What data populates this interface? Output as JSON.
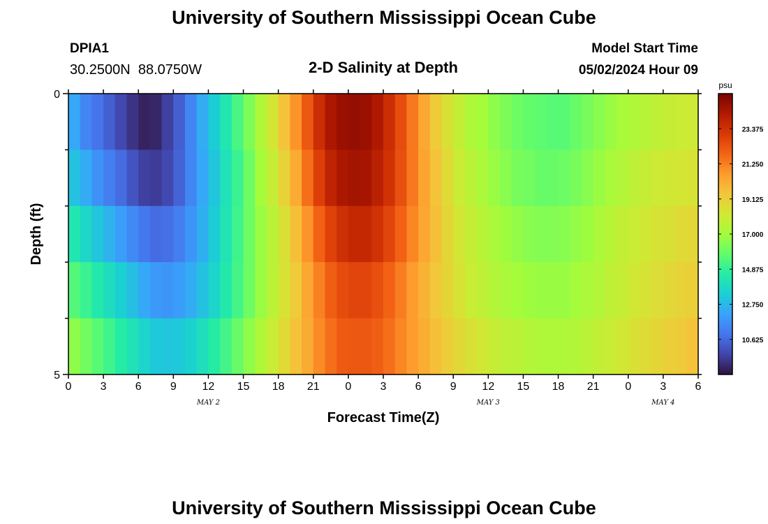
{
  "header": {
    "title": "University of Southern Mississippi Ocean Cube",
    "station": "DPIA1",
    "coords": "30.2500N  88.0750W",
    "subtitle": "2-D Salinity at Depth",
    "model_label": "Model Start Time",
    "model_time": "05/02/2024 Hour 09"
  },
  "footer": {
    "title": "University of Southern Mississippi Ocean Cube"
  },
  "chart_data": {
    "type": "heatmap",
    "title": "2-D Salinity at Depth",
    "xlabel": "Forecast Time(Z)",
    "ylabel": "Depth (ft)",
    "x_tick_labels": [
      "0",
      "3",
      "6",
      "9",
      "12",
      "15",
      "18",
      "21",
      "0",
      "3",
      "6",
      "9",
      "12",
      "15",
      "18",
      "21",
      "0",
      "3",
      "6"
    ],
    "date_labels": [
      {
        "label": "MAY 2",
        "x": 12
      },
      {
        "label": "MAY 3",
        "x": 36
      },
      {
        "label": "MAY 4",
        "x": 51
      }
    ],
    "y_tick_labels": [
      "0",
      "5"
    ],
    "xlim": [
      0,
      54
    ],
    "ylim": [
      0,
      5
    ],
    "colorbar": {
      "unit": "psu",
      "ticks": [
        "23.375",
        "21.250",
        "19.125",
        "17.000",
        "14.875",
        "12.750",
        "10.625"
      ],
      "tick_values": [
        23.375,
        21.25,
        19.125,
        17.0,
        14.875,
        12.75,
        10.625
      ],
      "vmin": 8.5,
      "vmax": 25.5
    },
    "colormap": [
      "#30123b",
      "#4145ab",
      "#4675ed",
      "#39a2fc",
      "#1bcfd4",
      "#24eca6",
      "#61fc6c",
      "#a4fc3b",
      "#d1e834",
      "#f3c63a",
      "#fe9b2d",
      "#f36315",
      "#d93806",
      "#b11901",
      "#7a0402"
    ],
    "x_hours": [
      0,
      1,
      2,
      3,
      4,
      5,
      6,
      7,
      8,
      9,
      10,
      11,
      12,
      13,
      14,
      15,
      16,
      17,
      18,
      19,
      20,
      21,
      22,
      23,
      24,
      25,
      26,
      27,
      28,
      29,
      30,
      31,
      32,
      33,
      34,
      35,
      36,
      37,
      38,
      39,
      40,
      41,
      42,
      43,
      44,
      45,
      46,
      47,
      48,
      49,
      50,
      51,
      52,
      53,
      54
    ],
    "depth_levels_ft": [
      0,
      1,
      2,
      3,
      4,
      5
    ],
    "values_by_depth_interval": [
      [
        12.3,
        11.4,
        10.9,
        10.4,
        9.8,
        9.3,
        8.9,
        9.0,
        9.6,
        10.4,
        11.4,
        12.4,
        13.3,
        14.3,
        15.3,
        16.3,
        17.3,
        18.3,
        19.5,
        20.8,
        22.2,
        23.5,
        24.4,
        24.8,
        24.9,
        24.8,
        24.3,
        23.5,
        22.5,
        21.4,
        20.3,
        19.3,
        18.5,
        17.8,
        17.3,
        17.0,
        16.6,
        16.3,
        16.0,
        15.8,
        15.7,
        15.6,
        15.6,
        15.9,
        16.2,
        16.5,
        16.8,
        17.1,
        17.3,
        17.5,
        17.7,
        17.9,
        18.0,
        18.1,
        18.3
      ],
      [
        13.0,
        12.4,
        11.7,
        11.2,
        10.7,
        10.1,
        9.6,
        9.5,
        9.8,
        10.5,
        11.4,
        12.3,
        13.1,
        14.1,
        15.0,
        16.0,
        17.0,
        17.9,
        19.0,
        20.2,
        21.6,
        22.9,
        23.9,
        24.4,
        24.6,
        24.5,
        24.0,
        23.3,
        22.4,
        21.4,
        20.4,
        19.5,
        18.7,
        18.0,
        17.6,
        17.2,
        16.8,
        16.5,
        16.2,
        16.1,
        15.9,
        15.9,
        16.0,
        16.2,
        16.5,
        16.8,
        17.1,
        17.4,
        17.7,
        17.9,
        18.1,
        18.2,
        18.3,
        18.4,
        18.5
      ],
      [
        14.3,
        13.7,
        13.1,
        12.6,
        12.0,
        11.5,
        11.0,
        10.7,
        10.8,
        11.2,
        11.8,
        12.5,
        13.3,
        14.2,
        15.1,
        16.0,
        16.8,
        17.6,
        18.5,
        19.6,
        20.8,
        21.9,
        22.8,
        23.4,
        23.7,
        23.7,
        23.3,
        22.7,
        21.9,
        21.1,
        20.3,
        19.6,
        18.9,
        18.3,
        17.9,
        17.5,
        17.2,
        16.9,
        16.7,
        16.5,
        16.4,
        16.4,
        16.5,
        16.7,
        16.9,
        17.2,
        17.5,
        17.8,
        18.0,
        18.2,
        18.4,
        18.5,
        18.7,
        18.8,
        18.9
      ],
      [
        15.5,
        15.0,
        14.4,
        13.9,
        13.4,
        12.9,
        12.3,
        11.9,
        11.8,
        12.0,
        12.4,
        13.0,
        13.6,
        14.4,
        15.2,
        16.0,
        16.8,
        17.6,
        18.4,
        19.3,
        20.3,
        21.2,
        22.0,
        22.5,
        22.7,
        22.7,
        22.4,
        21.9,
        21.3,
        20.6,
        20.0,
        19.4,
        18.9,
        18.4,
        18.0,
        17.7,
        17.4,
        17.2,
        17.0,
        16.9,
        16.8,
        16.8,
        16.8,
        17.0,
        17.2,
        17.4,
        17.7,
        17.9,
        18.2,
        18.4,
        18.6,
        18.8,
        19.0,
        19.1,
        19.3
      ],
      [
        16.6,
        16.1,
        15.6,
        15.1,
        14.6,
        14.1,
        13.6,
        13.2,
        13.1,
        13.2,
        13.5,
        14.0,
        14.6,
        15.2,
        15.9,
        16.6,
        17.3,
        18.0,
        18.7,
        19.5,
        20.2,
        21.0,
        21.6,
        22.1,
        22.2,
        22.2,
        22.0,
        21.6,
        21.1,
        20.6,
        20.1,
        19.6,
        19.2,
        18.8,
        18.5,
        18.2,
        17.9,
        17.7,
        17.6,
        17.4,
        17.3,
        17.3,
        17.3,
        17.4,
        17.6,
        17.8,
        18.0,
        18.2,
        18.5,
        18.7,
        18.9,
        19.1,
        19.3,
        19.5,
        19.7
      ]
    ]
  }
}
